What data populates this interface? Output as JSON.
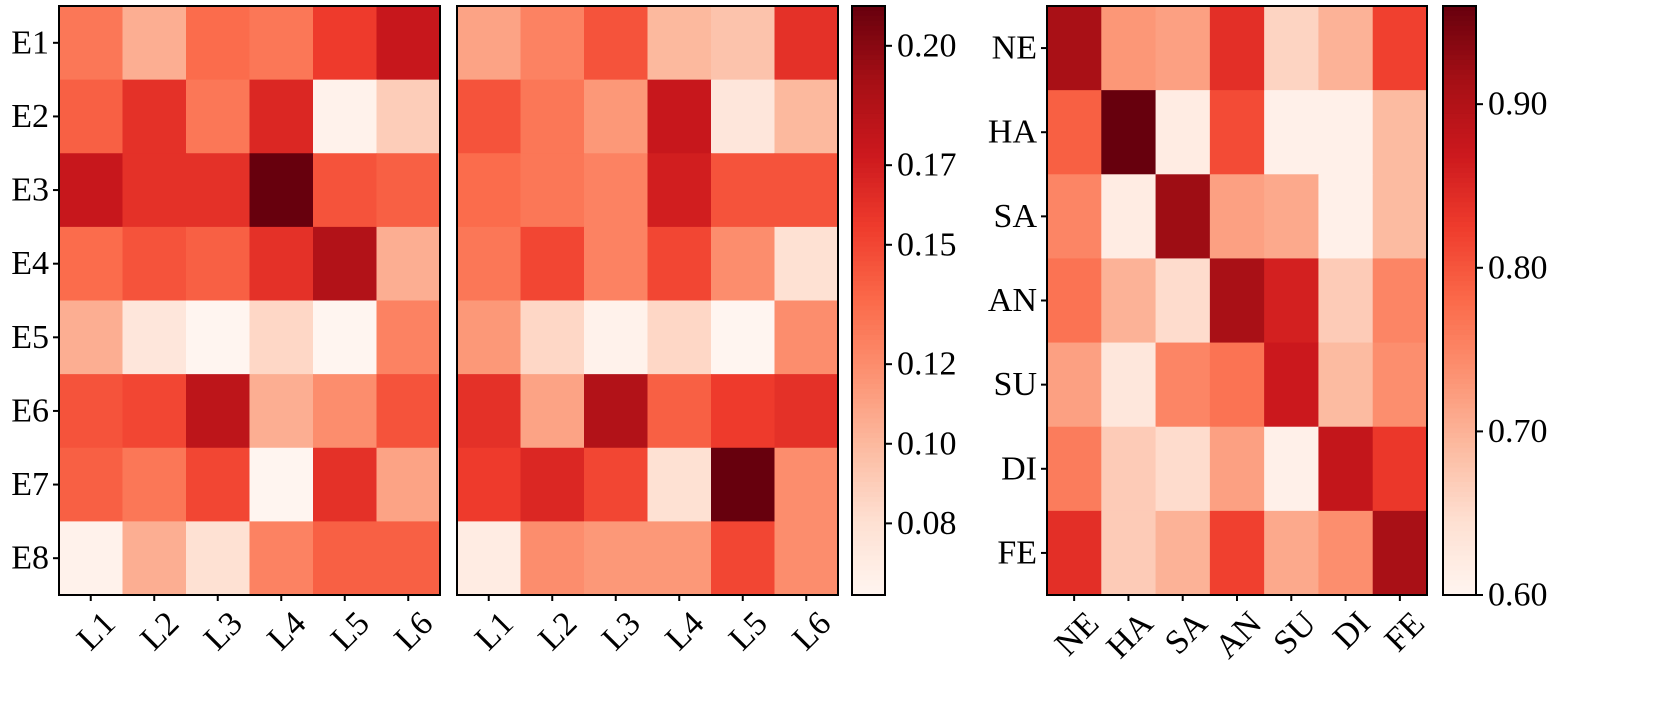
{
  "chart_data": [
    {
      "type": "heatmap",
      "x_categories": [
        "L1",
        "L2",
        "L3",
        "L4",
        "L5",
        "L6"
      ],
      "y_categories": [
        "E1",
        "E2",
        "E3",
        "E4",
        "E5",
        "E6",
        "E7",
        "E8"
      ],
      "values": [
        [
          0.13,
          0.105,
          0.135,
          0.13,
          0.155,
          0.175
        ],
        [
          0.14,
          0.16,
          0.13,
          0.165,
          0.065,
          0.09
        ],
        [
          0.175,
          0.16,
          0.16,
          0.21,
          0.145,
          0.14
        ],
        [
          0.135,
          0.145,
          0.14,
          0.16,
          0.185,
          0.105
        ],
        [
          0.105,
          0.075,
          0.062,
          0.085,
          0.062,
          0.125
        ],
        [
          0.145,
          0.15,
          0.18,
          0.105,
          0.12,
          0.145
        ],
        [
          0.14,
          0.13,
          0.15,
          0.062,
          0.16,
          0.11
        ],
        [
          0.065,
          0.105,
          0.08,
          0.125,
          0.14,
          0.14
        ]
      ],
      "colormap": "Reds",
      "vmin": 0.062,
      "vmax": 0.21
    },
    {
      "type": "heatmap",
      "x_categories": [
        "L1",
        "L2",
        "L3",
        "L4",
        "L5",
        "L6"
      ],
      "y_categories": [
        "E1",
        "E2",
        "E3",
        "E4",
        "E5",
        "E6",
        "E7",
        "E8"
      ],
      "values": [
        [
          0.11,
          0.125,
          0.145,
          0.1,
          0.095,
          0.16
        ],
        [
          0.145,
          0.13,
          0.115,
          0.175,
          0.075,
          0.1
        ],
        [
          0.135,
          0.13,
          0.125,
          0.17,
          0.145,
          0.145
        ],
        [
          0.13,
          0.15,
          0.125,
          0.15,
          0.12,
          0.08
        ],
        [
          0.115,
          0.085,
          0.065,
          0.085,
          0.062,
          0.12
        ],
        [
          0.16,
          0.11,
          0.185,
          0.14,
          0.155,
          0.16
        ],
        [
          0.155,
          0.165,
          0.15,
          0.08,
          0.21,
          0.12
        ],
        [
          0.07,
          0.12,
          0.115,
          0.115,
          0.15,
          0.12
        ]
      ],
      "colormap": "Reds",
      "vmin": 0.062,
      "vmax": 0.21,
      "colorbar": {
        "ticks": [
          0.08,
          0.1,
          0.12,
          0.15,
          0.17,
          0.2
        ],
        "tick_labels": [
          "0.08",
          "0.10",
          "0.12",
          "0.15",
          "0.17",
          "0.20"
        ]
      }
    },
    {
      "type": "heatmap",
      "x_categories": [
        "NE",
        "HA",
        "SA",
        "AN",
        "SU",
        "DI",
        "FE"
      ],
      "y_categories": [
        "NE",
        "HA",
        "SA",
        "AN",
        "SU",
        "DI",
        "FE"
      ],
      "values": [
        [
          0.91,
          0.73,
          0.72,
          0.84,
          0.66,
          0.7,
          0.82
        ],
        [
          0.79,
          0.96,
          0.62,
          0.81,
          0.61,
          0.61,
          0.69
        ],
        [
          0.75,
          0.62,
          0.92,
          0.72,
          0.71,
          0.61,
          0.69
        ],
        [
          0.77,
          0.7,
          0.65,
          0.91,
          0.86,
          0.67,
          0.75
        ],
        [
          0.72,
          0.63,
          0.75,
          0.77,
          0.87,
          0.69,
          0.74
        ],
        [
          0.76,
          0.67,
          0.65,
          0.72,
          0.61,
          0.88,
          0.83
        ],
        [
          0.84,
          0.67,
          0.7,
          0.82,
          0.71,
          0.74,
          0.91
        ]
      ],
      "colormap": "Reds",
      "vmin": 0.6,
      "vmax": 0.96,
      "colorbar": {
        "ticks": [
          0.6,
          0.7,
          0.8,
          0.9
        ],
        "tick_labels": [
          "0.60",
          "0.70",
          "0.80",
          "0.90"
        ]
      }
    }
  ]
}
